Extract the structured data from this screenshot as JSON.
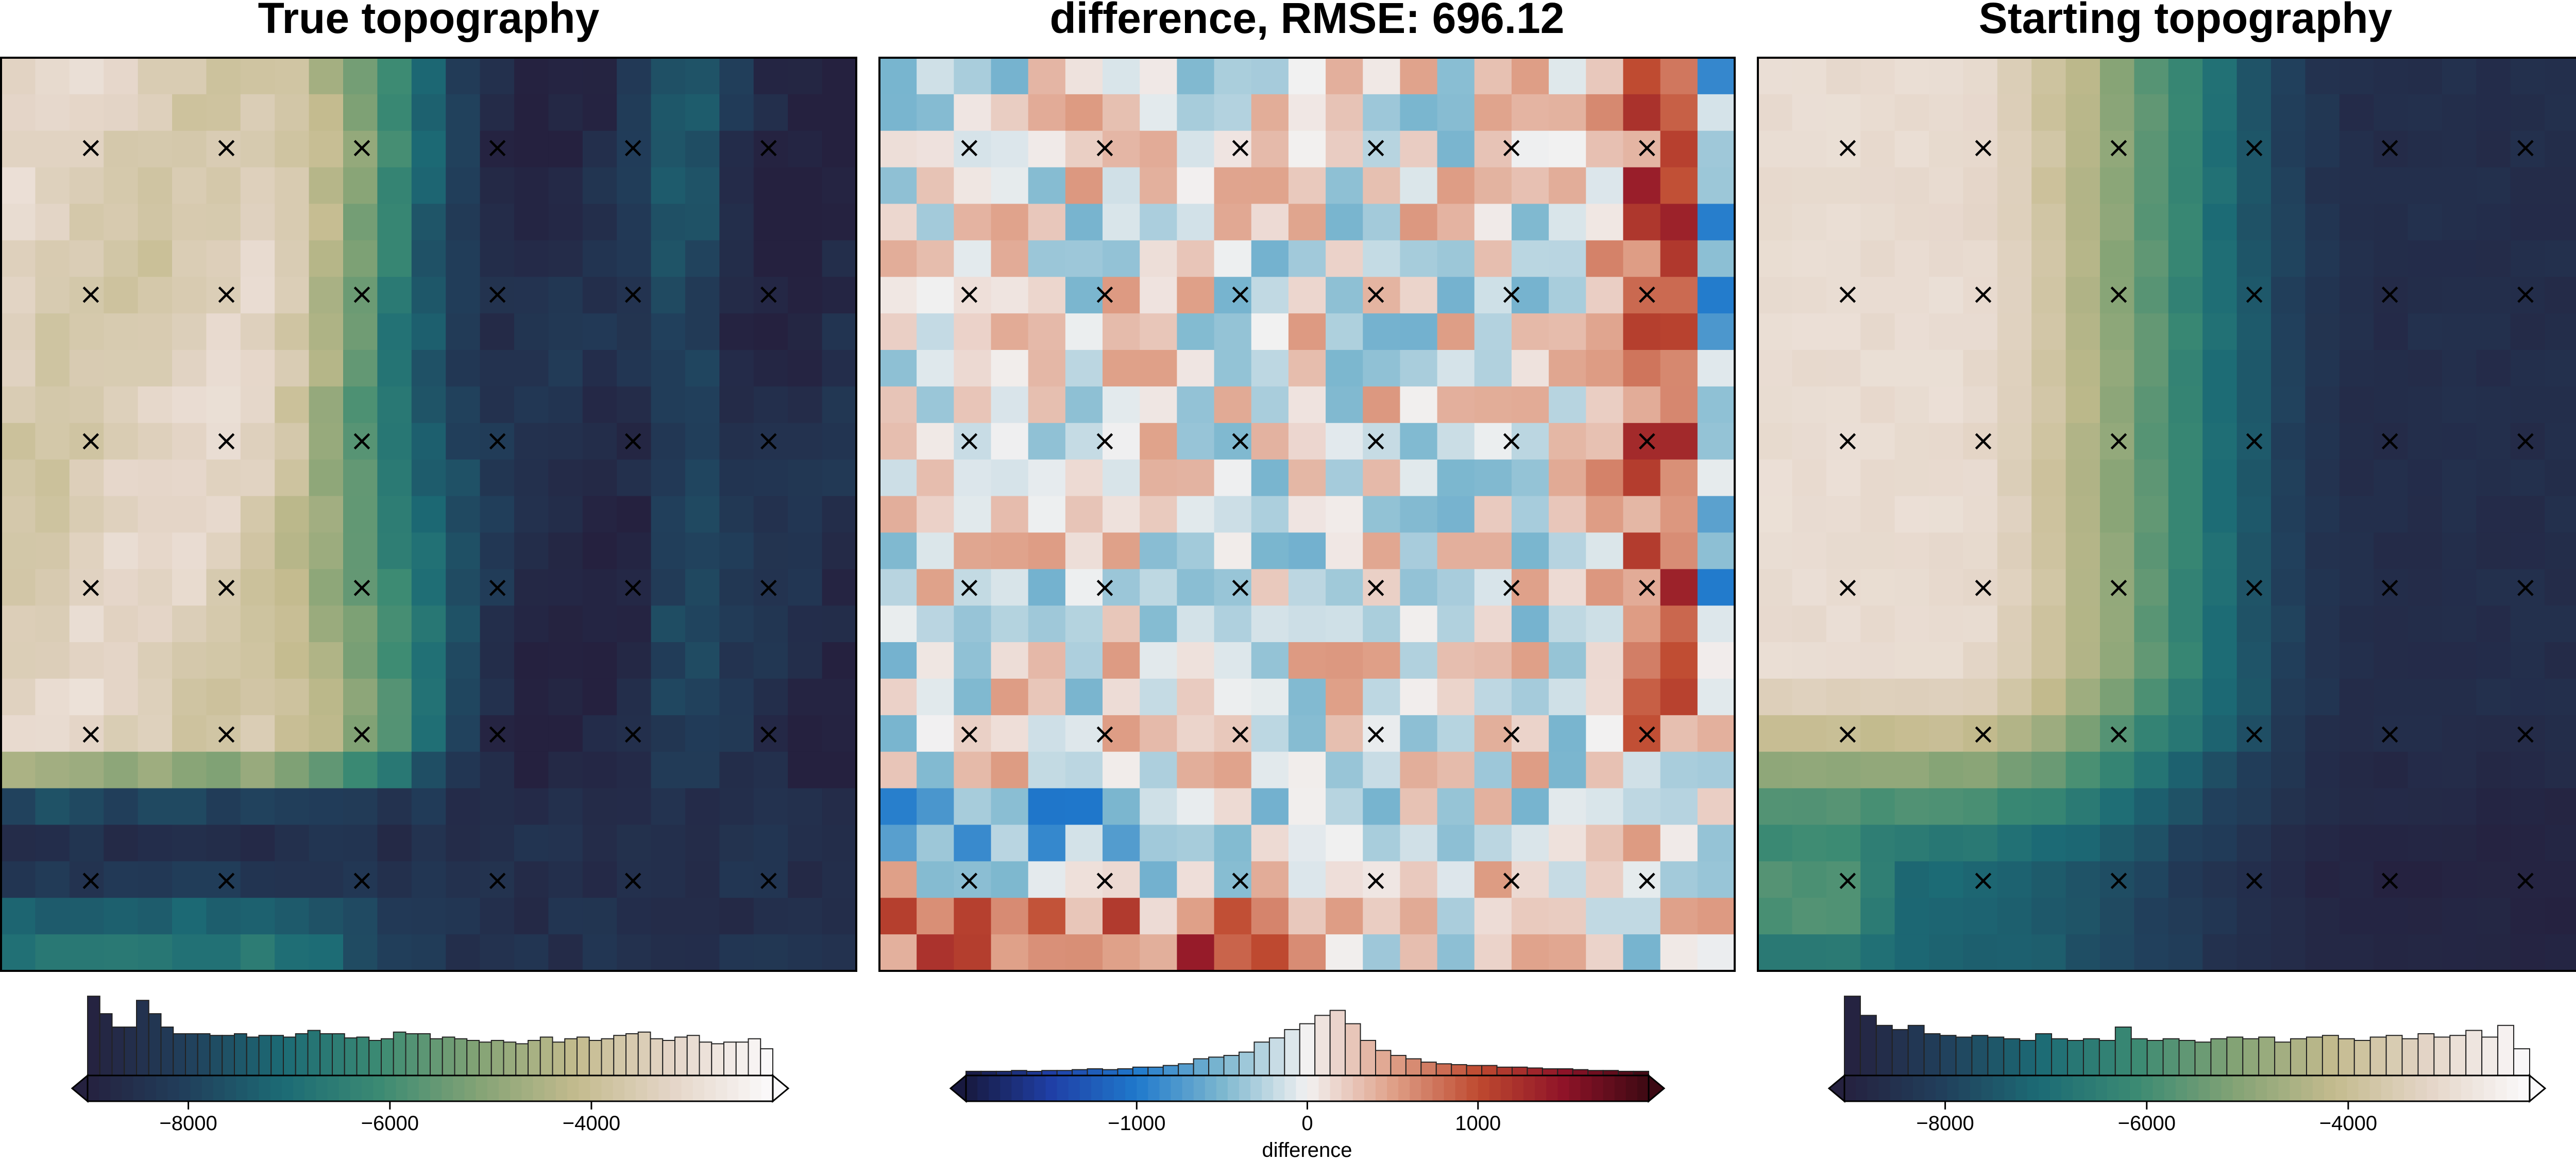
{
  "chart_data": [
    {
      "type": "heatmap",
      "title": "True topography",
      "colormap": "topo_rain",
      "grid": {
        "rows": 25,
        "cols": 25
      },
      "value_range": [
        -9000,
        -2200
      ],
      "markers": {
        "symbol": "×",
        "rows": 6,
        "cols": 6
      },
      "colorbar": {
        "ticks": [
          -8000,
          -6000,
          -4000
        ],
        "tick_labels": [
          "−8000",
          "−6000",
          "−4000"
        ],
        "label": "",
        "extend": "both",
        "histogram": [
          0.95,
          0.74,
          0.58,
          0.58,
          0.9,
          0.74,
          0.58,
          0.5,
          0.5,
          0.5,
          0.48,
          0.48,
          0.5,
          0.46,
          0.48,
          0.48,
          0.46,
          0.5,
          0.54,
          0.5,
          0.5,
          0.45,
          0.46,
          0.42,
          0.44,
          0.52,
          0.5,
          0.5,
          0.44,
          0.46,
          0.44,
          0.42,
          0.4,
          0.42,
          0.4,
          0.38,
          0.42,
          0.46,
          0.4,
          0.44,
          0.46,
          0.42,
          0.44,
          0.48,
          0.5,
          0.52,
          0.44,
          0.42,
          0.46,
          0.48,
          0.4,
          0.38,
          0.4,
          0.4,
          0.44,
          0.32
        ]
      }
    },
    {
      "type": "heatmap",
      "title": "difference, RMSE: 696.12",
      "colormap": "balance",
      "grid": {
        "rows": 25,
        "cols": 23
      },
      "value_range": [
        -2000,
        2000
      ],
      "markers": {
        "symbol": "×",
        "rows": 6,
        "cols": 6
      },
      "colorbar": {
        "ticks": [
          -1000,
          0,
          1000
        ],
        "tick_labels": [
          "−1000",
          "0",
          "1000"
        ],
        "label": "difference",
        "extend": "both",
        "histogram": [
          0.05,
          0.05,
          0.05,
          0.06,
          0.05,
          0.06,
          0.06,
          0.07,
          0.08,
          0.07,
          0.08,
          0.1,
          0.1,
          0.12,
          0.14,
          0.2,
          0.22,
          0.24,
          0.28,
          0.4,
          0.45,
          0.55,
          0.62,
          0.72,
          0.78,
          0.62,
          0.42,
          0.3,
          0.24,
          0.2,
          0.16,
          0.14,
          0.13,
          0.12,
          0.12,
          0.1,
          0.1,
          0.09,
          0.08,
          0.08,
          0.07,
          0.06,
          0.06,
          0.05,
          0.05
        ]
      }
    },
    {
      "type": "heatmap",
      "title": "Starting topography",
      "colormap": "topo_rain",
      "grid": {
        "rows": 25,
        "cols": 25
      },
      "value_range": [
        -9000,
        -2200
      ],
      "markers": {
        "symbol": "×",
        "rows": 6,
        "cols": 6
      },
      "colorbar": {
        "ticks": [
          -8000,
          -6000,
          -4000
        ],
        "tick_labels": [
          "−8000",
          "−6000",
          "−4000"
        ],
        "label": "",
        "extend": "both",
        "histogram": [
          0.95,
          0.72,
          0.6,
          0.55,
          0.6,
          0.5,
          0.48,
          0.46,
          0.48,
          0.46,
          0.44,
          0.42,
          0.5,
          0.44,
          0.42,
          0.44,
          0.42,
          0.58,
          0.44,
          0.42,
          0.44,
          0.42,
          0.4,
          0.44,
          0.46,
          0.44,
          0.46,
          0.4,
          0.44,
          0.46,
          0.48,
          0.44,
          0.42,
          0.46,
          0.48,
          0.44,
          0.5,
          0.46,
          0.48,
          0.54,
          0.46,
          0.6,
          0.32
        ]
      }
    }
  ],
  "colors": {
    "topo_rain": [
      "#25213f",
      "#213f5b",
      "#1c6b75",
      "#3c8b73",
      "#84a375",
      "#c4bb8e",
      "#e5d6c9",
      "#fbfafc"
    ],
    "balance": [
      "#18193f",
      "#1f3fa6",
      "#1f79cc",
      "#7cb7cf",
      "#f2f1f1",
      "#dfa088",
      "#bf4a30",
      "#8f1328",
      "#3c0913"
    ],
    "marker": "#000000",
    "axis_frame": "#000000"
  }
}
